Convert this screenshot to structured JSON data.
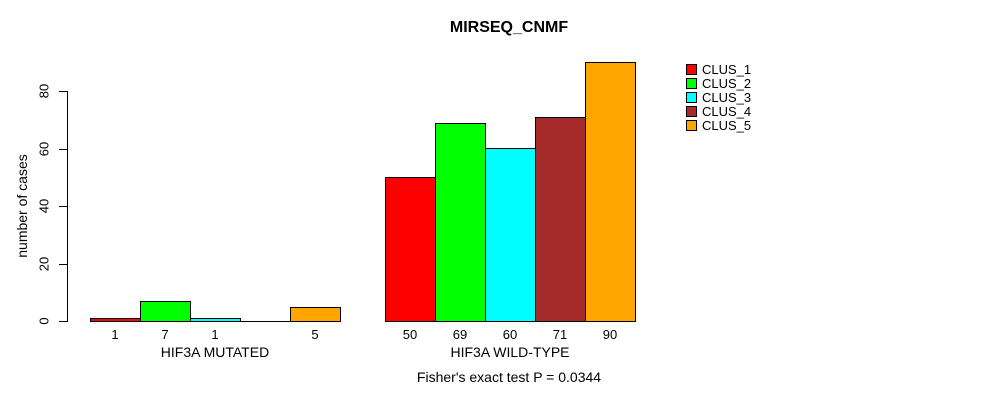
{
  "chart_data": {
    "type": "bar",
    "title": "MIRSEQ_CNMF",
    "ylabel": "number of cases",
    "xlabel": "",
    "ylim": [
      0,
      90
    ],
    "yticks": [
      0,
      20,
      40,
      60,
      80
    ],
    "grid": false,
    "legend_position": "right-outside-top",
    "categories": [
      "HIF3A MUTATED",
      "HIF3A WILD-TYPE"
    ],
    "series": [
      {
        "name": "CLUS_1",
        "color": "#FF0000",
        "values": [
          1,
          50
        ]
      },
      {
        "name": "CLUS_2",
        "color": "#00FF00",
        "values": [
          7,
          69
        ]
      },
      {
        "name": "CLUS_3",
        "color": "#00FFFF",
        "values": [
          1,
          60
        ]
      },
      {
        "name": "CLUS_4",
        "color": "#A52A2A",
        "values": [
          0,
          71
        ]
      },
      {
        "name": "CLUS_5",
        "color": "#FFA500",
        "values": [
          5,
          90
        ]
      }
    ],
    "bar_value_labels": [
      [
        "1",
        "7",
        "1",
        "",
        "5"
      ],
      [
        "50",
        "69",
        "60",
        "71",
        "90"
      ]
    ],
    "annotation": "Fisher's exact test P = 0.0344"
  }
}
